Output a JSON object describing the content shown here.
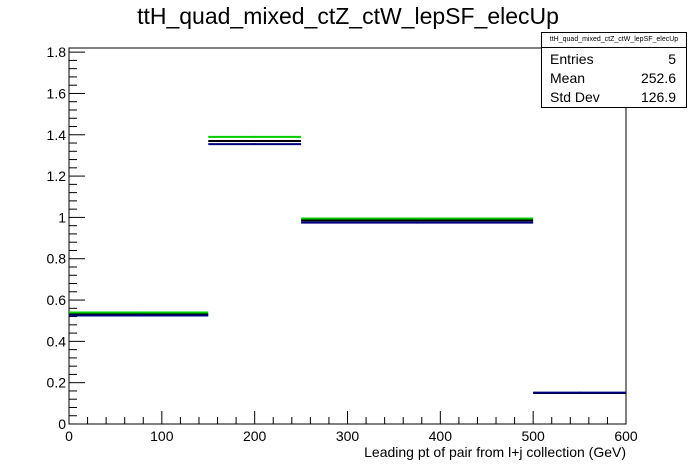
{
  "title": "ttH_quad_mixed_ctZ_ctW_lepSF_elecUp",
  "stats": {
    "name": "ttH_quad_mixed_ctZ_ctW_lepSF_elecUp",
    "rows": [
      {
        "label": "Entries",
        "value": "5"
      },
      {
        "label": "Mean",
        "value": "252.6"
      },
      {
        "label": "Std Dev",
        "value": "126.9"
      }
    ]
  },
  "chart_data": {
    "type": "histogram",
    "title": "ttH_quad_mixed_ctZ_ctW_lepSF_elecUp",
    "xlabel": "Leading pt of pair from l+j collection (GeV)",
    "ylabel": "",
    "xlim": [
      0,
      600
    ],
    "ylim": [
      0,
      1.82
    ],
    "x_ticks": [
      0,
      100,
      200,
      300,
      400,
      500,
      600
    ],
    "y_ticks": [
      0,
      0.2,
      0.4,
      0.6,
      0.8,
      1,
      1.2,
      1.4,
      1.6,
      1.8
    ],
    "bin_edges": [
      0,
      150,
      250,
      500,
      600
    ],
    "series": [
      {
        "color": "#00cc00",
        "values": [
          0.54,
          1.39,
          0.995,
          0.15
        ]
      },
      {
        "color": "#000000",
        "values": [
          0.53,
          1.37,
          0.985,
          0.15
        ]
      },
      {
        "color": "#000080",
        "values": [
          0.525,
          1.355,
          0.975,
          0.152
        ]
      }
    ],
    "grid": false,
    "legend": "none"
  }
}
